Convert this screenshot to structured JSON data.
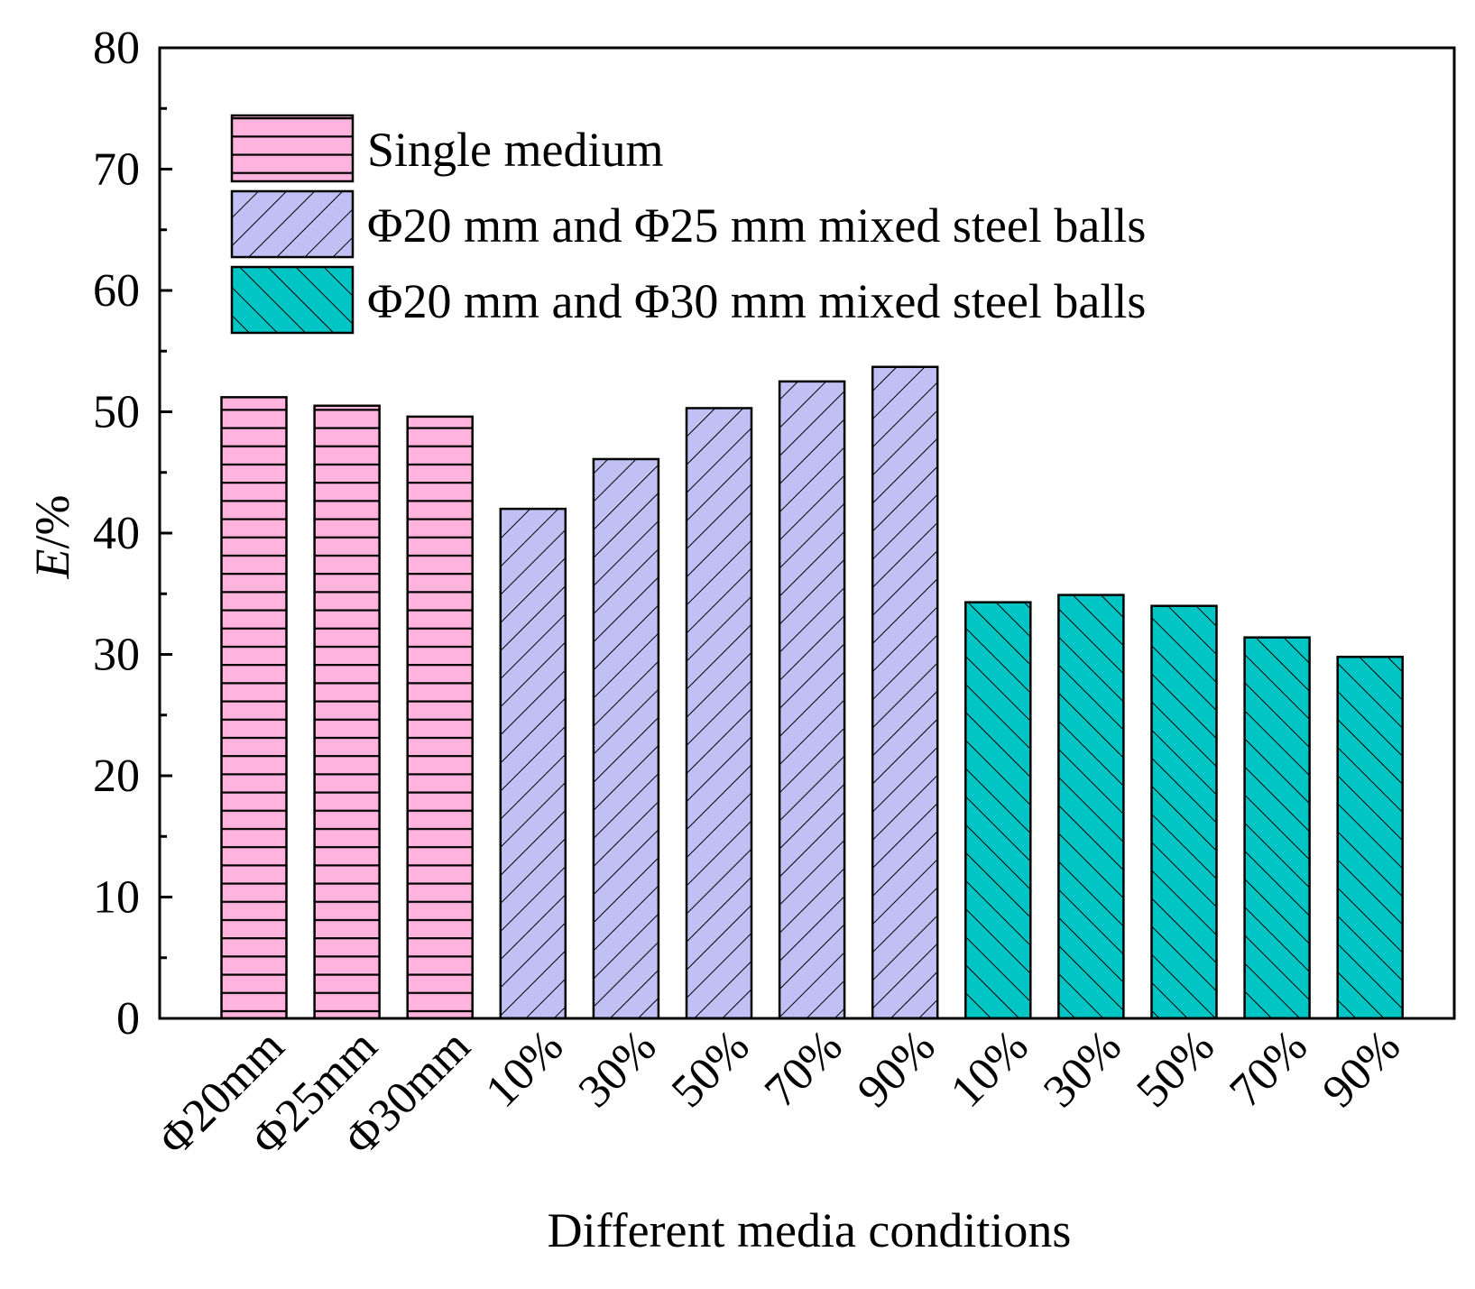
{
  "chart_data": {
    "type": "bar",
    "title": "",
    "xlabel": "Different media conditions",
    "ylabel": "E/%",
    "ylabel_italic": "E",
    "ylabel_rest": "/%",
    "ylim": [
      0,
      80
    ],
    "yticks": [
      0,
      10,
      20,
      30,
      40,
      50,
      60,
      70,
      80
    ],
    "grid": false,
    "legend_position": "top-left",
    "series": [
      {
        "name": "Single medium",
        "color": "#ffb3dd",
        "pattern": "horizontal",
        "categories": [
          "Φ20mm",
          "Φ25mm",
          "Φ30mm"
        ],
        "values": [
          51.2,
          50.5,
          49.6
        ]
      },
      {
        "name": "Φ20 mm and Φ25 mm mixed steel balls",
        "color": "#c0c0f5",
        "pattern": "forward-diagonal",
        "categories": [
          "10%",
          "30%",
          "50%",
          "70%",
          "90%"
        ],
        "values": [
          42.0,
          46.1,
          50.3,
          52.5,
          53.7
        ]
      },
      {
        "name": "Φ20 mm and Φ30 mm mixed steel balls",
        "color": "#00c5c5",
        "pattern": "back-diagonal",
        "categories": [
          "10%",
          "30%",
          "50%",
          "70%",
          "90%"
        ],
        "values": [
          34.3,
          34.9,
          34.0,
          31.4,
          29.8
        ]
      }
    ]
  }
}
